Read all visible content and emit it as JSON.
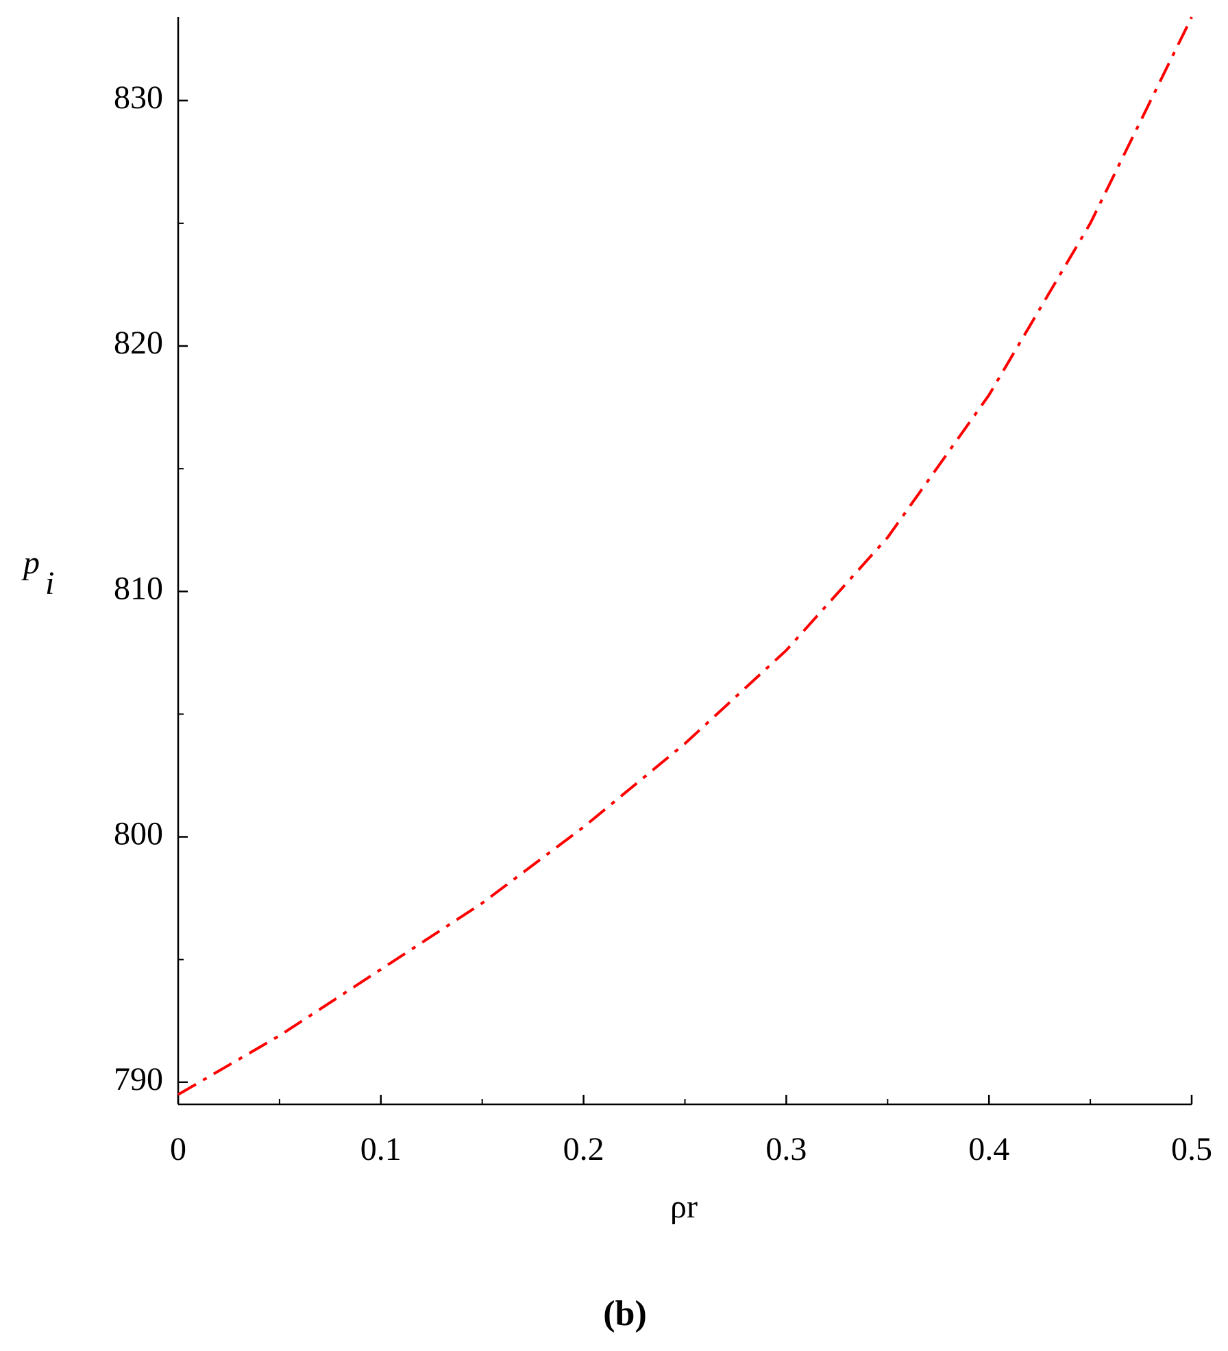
{
  "chart_data": {
    "type": "line",
    "xlabel": "ρr",
    "ylabel": "p",
    "ylabel_subscript": "i",
    "caption": "(b)",
    "x": [
      0,
      0.05,
      0.1,
      0.15,
      0.2,
      0.25,
      0.3,
      0.35,
      0.4,
      0.45,
      0.5
    ],
    "series": [
      {
        "color": "#ff0000",
        "dash": "dash-dot",
        "values": [
          789.5,
          791.9,
          794.6,
          797.3,
          800.4,
          803.8,
          807.6,
          812.2,
          818.0,
          825.0,
          833.4
        ]
      }
    ],
    "xlim": [
      0,
      0.5
    ],
    "ylim": [
      789.1,
      833.4
    ],
    "xticks": [
      0,
      0.1,
      0.2,
      0.3,
      0.4,
      0.5
    ],
    "yticks": [
      790,
      800,
      810,
      820,
      830
    ],
    "x_minor_ticks": [
      0.05,
      0.15,
      0.25,
      0.35,
      0.45
    ],
    "y_minor_ticks": [
      795,
      805,
      815,
      825
    ]
  }
}
